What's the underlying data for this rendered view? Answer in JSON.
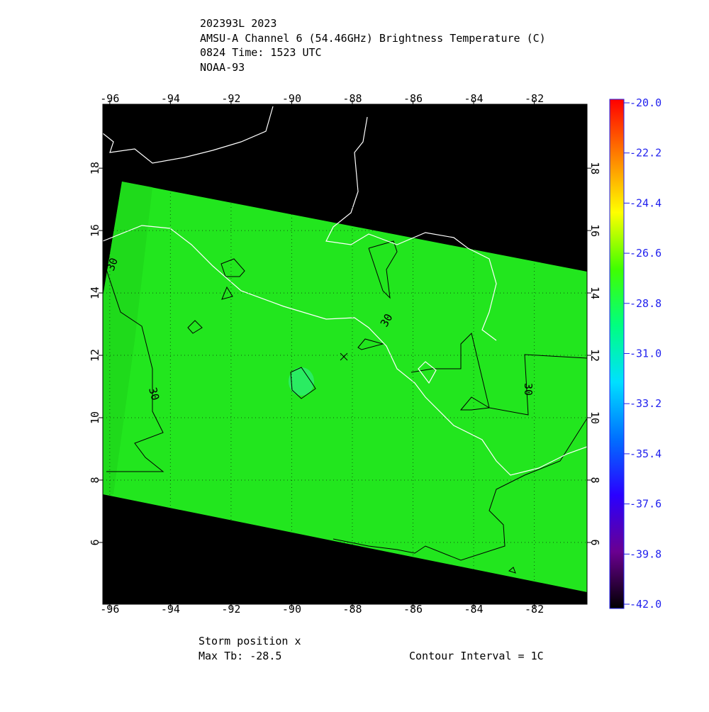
{
  "header": {
    "lines": [
      "202393L 2023",
      "AMSU-A Channel 6 (54.46GHz) Brightness Temperature (C)",
      "0824 Time: 1523 UTC",
      "NOAA-93"
    ]
  },
  "map": {
    "xlim": [
      -96.23,
      -80.26
    ],
    "ylim": [
      4.02,
      20.05
    ],
    "xticks": [
      -96,
      -94,
      -92,
      -90,
      -88,
      -86,
      -84,
      -82
    ],
    "yticks": [
      6,
      8,
      10,
      12,
      14,
      16,
      18
    ],
    "grid": true,
    "contour_label": "30"
  },
  "colorbar": {
    "range": [
      -42.0,
      -20.0
    ],
    "ticks": [
      {
        "value": -20.0,
        "label": "-20.0"
      },
      -22.2,
      -24.4,
      -26.6,
      -28.8,
      {
        "value": -31.0,
        "label": "-31.0"
      },
      -33.2,
      -35.4,
      -37.6,
      -39.8,
      {
        "value": -42.0,
        "label": "-42.0"
      }
    ],
    "colors": [
      "#000000",
      "#6a0090",
      "#2a00ff",
      "#0070ff",
      "#00e0ff",
      "#00ff80",
      "#40ff00",
      "#ffff00",
      "#ff8000",
      "#ff0000"
    ]
  },
  "footer": {
    "storm": "Storm position x",
    "max_tb": "Max Tb: -28.5",
    "interval": "Contour Interval = 1C"
  }
}
